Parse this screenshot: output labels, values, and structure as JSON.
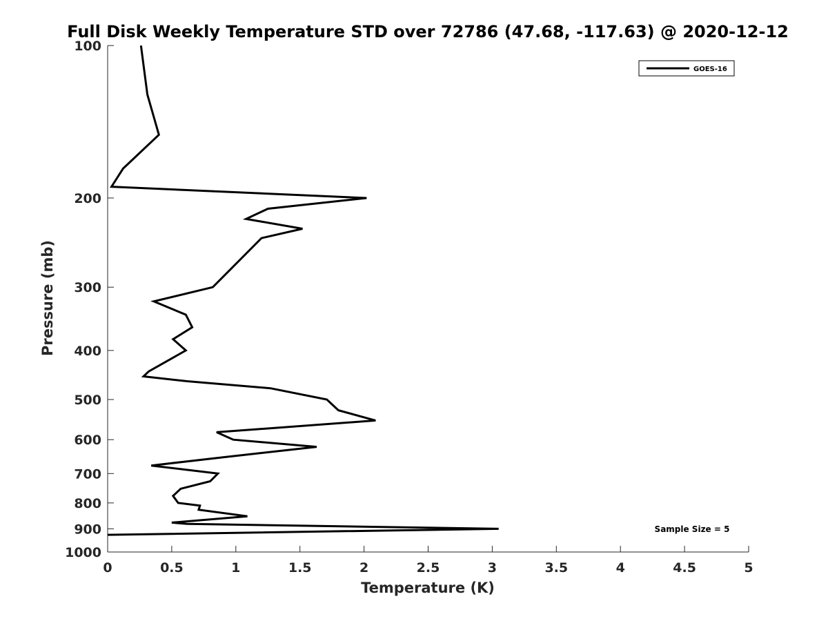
{
  "chart_data": {
    "type": "line",
    "title": "Full Disk Weekly Temperature STD over 72786 (47.68, -117.63) @ 2020-12-12",
    "xlabel": "Temperature (K)",
    "ylabel": "Pressure (mb)",
    "xlim": [
      0,
      5
    ],
    "ylim": [
      100,
      1000
    ],
    "y_scale": "log",
    "y_reversed": true,
    "x_ticks": [
      0,
      0.5,
      1,
      1.5,
      2,
      2.5,
      3,
      3.5,
      4,
      4.5,
      5
    ],
    "x_tick_labels": [
      "0",
      "0.5",
      "1",
      "1.5",
      "2",
      "2.5",
      "3",
      "3.5",
      "4",
      "4.5",
      "5"
    ],
    "y_ticks": [
      100,
      200,
      300,
      400,
      500,
      600,
      700,
      800,
      900,
      1000
    ],
    "y_tick_labels": [
      "100",
      "200",
      "300",
      "400",
      "500",
      "600",
      "700",
      "800",
      "900",
      "1000"
    ],
    "grid": false,
    "legend_position": "top-right",
    "annotation": "Sample Size = 5",
    "line_color": "#000000",
    "series": [
      {
        "name": "GOES-16",
        "points": [
          [
            0.26,
            100
          ],
          [
            0.31,
            125
          ],
          [
            0.4,
            150
          ],
          [
            0.12,
            175
          ],
          [
            0.03,
            190
          ],
          [
            2.02,
            200
          ],
          [
            1.25,
            210
          ],
          [
            1.08,
            220
          ],
          [
            1.52,
            230
          ],
          [
            1.2,
            240
          ],
          [
            0.82,
            300
          ],
          [
            0.36,
            320
          ],
          [
            0.61,
            340
          ],
          [
            0.66,
            360
          ],
          [
            0.51,
            380
          ],
          [
            0.61,
            400
          ],
          [
            0.32,
            440
          ],
          [
            0.28,
            450
          ],
          [
            0.62,
            460
          ],
          [
            1.27,
            475
          ],
          [
            1.71,
            500
          ],
          [
            1.8,
            525
          ],
          [
            2.09,
            550
          ],
          [
            0.85,
            580
          ],
          [
            0.98,
            600
          ],
          [
            1.63,
            620
          ],
          [
            0.9,
            650
          ],
          [
            0.34,
            675
          ],
          [
            0.86,
            700
          ],
          [
            0.8,
            725
          ],
          [
            0.57,
            750
          ],
          [
            0.51,
            775
          ],
          [
            0.55,
            800
          ],
          [
            0.72,
            810
          ],
          [
            0.71,
            825
          ],
          [
            1.09,
            850
          ],
          [
            0.5,
            875
          ],
          [
            0.62,
            880
          ],
          [
            3.05,
            900
          ],
          [
            0.0,
            925
          ]
        ]
      }
    ]
  }
}
